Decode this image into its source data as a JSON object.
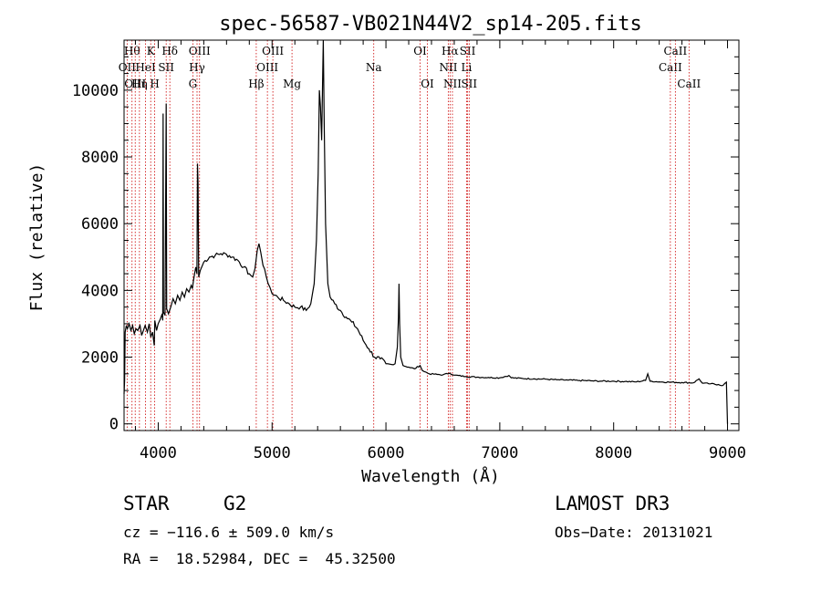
{
  "chart_data": {
    "type": "line",
    "title": "spec-56587-VB021N44V2_sp14-205.fits",
    "xlabel": "Wavelength (Å)",
    "ylabel": "Flux (relative)",
    "xlim": [
      3700,
      9100
    ],
    "ylim": [
      -200,
      11500
    ],
    "xticks": [
      4000,
      5000,
      6000,
      7000,
      8000,
      9000
    ],
    "yticks": [
      0,
      2000,
      4000,
      6000,
      8000,
      10000
    ],
    "series": [
      {
        "name": "flux",
        "points": [
          [
            3700,
            900
          ],
          [
            3705,
            1300
          ],
          [
            3710,
            2750
          ],
          [
            3720,
            2950
          ],
          [
            3730,
            2850
          ],
          [
            3745,
            3000
          ],
          [
            3760,
            2800
          ],
          [
            3775,
            2950
          ],
          [
            3790,
            2700
          ],
          [
            3805,
            2850
          ],
          [
            3820,
            2800
          ],
          [
            3840,
            2950
          ],
          [
            3855,
            2650
          ],
          [
            3870,
            2800
          ],
          [
            3885,
            2950
          ],
          [
            3905,
            2750
          ],
          [
            3920,
            3000
          ],
          [
            3935,
            2600
          ],
          [
            3950,
            2750
          ],
          [
            3965,
            2350
          ],
          [
            3970,
            3100
          ],
          [
            3985,
            2800
          ],
          [
            4000,
            3000
          ],
          [
            4020,
            3150
          ],
          [
            4035,
            3300
          ],
          [
            4040,
            3100
          ],
          [
            4043,
            9300
          ],
          [
            4046,
            3350
          ],
          [
            4060,
            3250
          ],
          [
            4070,
            9600
          ],
          [
            4074,
            3450
          ],
          [
            4090,
            3300
          ],
          [
            4110,
            3500
          ],
          [
            4130,
            3750
          ],
          [
            4150,
            3600
          ],
          [
            4170,
            3850
          ],
          [
            4190,
            3700
          ],
          [
            4210,
            3950
          ],
          [
            4230,
            3800
          ],
          [
            4250,
            4050
          ],
          [
            4270,
            3950
          ],
          [
            4290,
            4150
          ],
          [
            4300,
            4050
          ],
          [
            4310,
            4300
          ],
          [
            4330,
            4700
          ],
          [
            4340,
            4500
          ],
          [
            4345,
            7800
          ],
          [
            4350,
            7200
          ],
          [
            4355,
            4400
          ],
          [
            4370,
            4600
          ],
          [
            4400,
            4850
          ],
          [
            4450,
            5000
          ],
          [
            4500,
            5050
          ],
          [
            4550,
            5100
          ],
          [
            4600,
            5080
          ],
          [
            4650,
            5000
          ],
          [
            4700,
            4900
          ],
          [
            4750,
            4700
          ],
          [
            4800,
            4500
          ],
          [
            4830,
            4400
          ],
          [
            4850,
            4650
          ],
          [
            4870,
            5200
          ],
          [
            4885,
            5400
          ],
          [
            4900,
            5150
          ],
          [
            4920,
            4750
          ],
          [
            4950,
            4400
          ],
          [
            4980,
            4100
          ],
          [
            5000,
            3900
          ],
          [
            5050,
            3800
          ],
          [
            5100,
            3700
          ],
          [
            5150,
            3600
          ],
          [
            5200,
            3500
          ],
          [
            5250,
            3500
          ],
          [
            5300,
            3400
          ],
          [
            5340,
            3600
          ],
          [
            5370,
            4200
          ],
          [
            5390,
            5500
          ],
          [
            5405,
            7500
          ],
          [
            5415,
            10000
          ],
          [
            5425,
            9500
          ],
          [
            5435,
            8500
          ],
          [
            5443,
            10200
          ],
          [
            5450,
            11500
          ],
          [
            5458,
            9000
          ],
          [
            5470,
            6000
          ],
          [
            5490,
            4200
          ],
          [
            5510,
            3800
          ],
          [
            5550,
            3600
          ],
          [
            5600,
            3400
          ],
          [
            5650,
            3200
          ],
          [
            5700,
            3050
          ],
          [
            5750,
            2850
          ],
          [
            5800,
            2500
          ],
          [
            5850,
            2250
          ],
          [
            5900,
            2000
          ],
          [
            5950,
            1950
          ],
          [
            6000,
            1800
          ],
          [
            6050,
            1780
          ],
          [
            6080,
            1800
          ],
          [
            6100,
            2300
          ],
          [
            6110,
            3200
          ],
          [
            6115,
            4200
          ],
          [
            6120,
            3000
          ],
          [
            6130,
            2000
          ],
          [
            6150,
            1750
          ],
          [
            6200,
            1700
          ],
          [
            6250,
            1650
          ],
          [
            6300,
            1750
          ],
          [
            6320,
            1600
          ],
          [
            6380,
            1500
          ],
          [
            6450,
            1480
          ],
          [
            6500,
            1470
          ],
          [
            6560,
            1520
          ],
          [
            6600,
            1460
          ],
          [
            6700,
            1420
          ],
          [
            6800,
            1400
          ],
          [
            6900,
            1390
          ],
          [
            7000,
            1380
          ],
          [
            7080,
            1450
          ],
          [
            7100,
            1380
          ],
          [
            7200,
            1360
          ],
          [
            7300,
            1350
          ],
          [
            7400,
            1340
          ],
          [
            7500,
            1320
          ],
          [
            7600,
            1310
          ],
          [
            7700,
            1300
          ],
          [
            7800,
            1290
          ],
          [
            7900,
            1280
          ],
          [
            8000,
            1280
          ],
          [
            8100,
            1270
          ],
          [
            8200,
            1260
          ],
          [
            8280,
            1300
          ],
          [
            8300,
            1500
          ],
          [
            8320,
            1280
          ],
          [
            8400,
            1260
          ],
          [
            8500,
            1250
          ],
          [
            8600,
            1240
          ],
          [
            8700,
            1230
          ],
          [
            8750,
            1350
          ],
          [
            8780,
            1220
          ],
          [
            8850,
            1200
          ],
          [
            8920,
            1180
          ],
          [
            8960,
            1150
          ],
          [
            8990,
            1250
          ],
          [
            9000,
            0
          ]
        ]
      }
    ],
    "lines": [
      {
        "wave": 3727,
        "label": "OII",
        "row": 2
      },
      {
        "wave": 3770,
        "label": "Hθ",
        "row": 1
      },
      {
        "wave": 3798,
        "label": "OIII",
        "row": 3
      },
      {
        "wave": 3835,
        "label": "Hη",
        "row": 3
      },
      {
        "wave": 3889,
        "label": "HeI",
        "row": 2
      },
      {
        "wave": 3934,
        "label": "K",
        "row": 1
      },
      {
        "wave": 3969,
        "label": "H",
        "row": 3
      },
      {
        "wave": 4070,
        "label": "SII",
        "row": 2
      },
      {
        "wave": 4102,
        "label": "Hδ",
        "row": 1
      },
      {
        "wave": 4304,
        "label": "G",
        "row": 3
      },
      {
        "wave": 4341,
        "label": "Hγ",
        "row": 2
      },
      {
        "wave": 4363,
        "label": "OIII",
        "row": 1
      },
      {
        "wave": 4861,
        "label": "Hβ",
        "row": 3
      },
      {
        "wave": 4959,
        "label": "OIII",
        "row": 2
      },
      {
        "wave": 5007,
        "label": "OIII",
        "row": 1
      },
      {
        "wave": 5175,
        "label": "Mg",
        "row": 3
      },
      {
        "wave": 5893,
        "label": "Na",
        "row": 2
      },
      {
        "wave": 6300,
        "label": "OI",
        "row": 1
      },
      {
        "wave": 6364,
        "label": "OI",
        "row": 3
      },
      {
        "wave": 6548,
        "label": "NII",
        "row": 2
      },
      {
        "wave": 6563,
        "label": "Hα",
        "row": 1
      },
      {
        "wave": 6584,
        "label": "NII",
        "row": 3
      },
      {
        "wave": 6708,
        "label": "Li",
        "row": 2
      },
      {
        "wave": 6717,
        "label": "SII",
        "row": 1
      },
      {
        "wave": 6731,
        "label": "SII",
        "row": 3
      },
      {
        "wave": 8498,
        "label": "CaII",
        "row": 2
      },
      {
        "wave": 8542,
        "label": "CaII",
        "row": 1
      },
      {
        "wave": 8662,
        "label": "CaII",
        "row": 3
      }
    ],
    "line_color": "#cc0000",
    "grid": false
  },
  "info": {
    "class": "STAR",
    "subclass": "G2",
    "survey": "LAMOST DR3",
    "cz": "cz = −116.6 ± 509.0 km/s",
    "obs_date": "Obs−Date: 20131021",
    "coords": "RA =  18.52984, DEC =  45.32500"
  }
}
